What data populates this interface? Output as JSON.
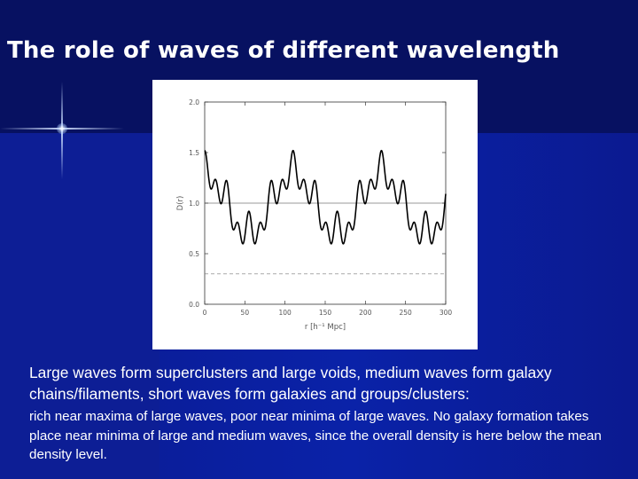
{
  "slide": {
    "title": "The role of waves of different wavelength"
  },
  "caption": {
    "main": "Large waves form superclusters and large voids, medium waves form galaxy chains/filaments, short waves form galaxies and groups/clusters:",
    "sub": "rich near maxima of large waves, poor near minima of large waves. No galaxy formation takes place near minima of large and medium waves, since the overall density is here below the mean density level."
  },
  "colors": {
    "background_top": "#071161",
    "background_main": "#0a1a8c",
    "title_text": "#ffffff",
    "plot_line": "#000000"
  },
  "chart_data": {
    "type": "line",
    "xlabel": "r [h⁻¹ Mpc]",
    "ylabel": "D(r)",
    "xlim": [
      0,
      300
    ],
    "ylim": [
      0.0,
      2.0
    ],
    "x_ticks": [
      0,
      50,
      100,
      150,
      200,
      250,
      300
    ],
    "y_ticks": [
      0.0,
      0.5,
      1.0,
      1.5,
      2.0
    ],
    "x_tick_labels": [
      "0",
      "50",
      "100",
      "150",
      "200",
      "250",
      "300"
    ],
    "y_tick_labels": [
      "0.0",
      "0.5",
      "1.0",
      "1.5",
      "2.0"
    ],
    "reference_lines": [
      {
        "y": 1.0,
        "style": "solid"
      },
      {
        "y": 0.3,
        "style": "dashed"
      }
    ],
    "series": [
      {
        "components": [
          {
            "amplitude": 0.3,
            "period_mpc": 110,
            "phase": 0
          },
          {
            "amplitude": 0.1,
            "period_mpc": 27.5,
            "phase": 0
          },
          {
            "amplitude": 0.12,
            "period_mpc": 13.75,
            "phase": 0
          }
        ],
        "offset": 1.0,
        "approx_range": [
          0.48,
          1.68
        ]
      }
    ]
  }
}
